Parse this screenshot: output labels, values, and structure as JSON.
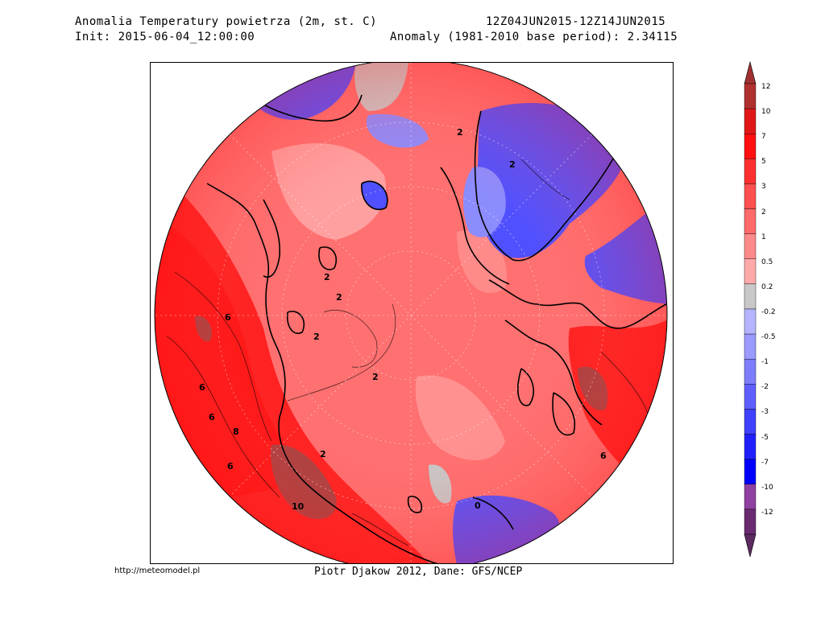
{
  "header": {
    "title_line1": "Anomalia Temperatury powietrza (2m, st. C)",
    "title_line2": "Init: 2015-06-04_12:00:00",
    "period": "12Z04JUN2015-12Z14JUN2015",
    "anomaly_text": "Anomaly (1981-2010 base period): 2.34115"
  },
  "footer": {
    "url": "http://meteomodel.pl",
    "credit": "Piotr Djakow 2012, Dane: GFS/NCEP"
  },
  "legend": {
    "levels": [
      {
        "label": "12",
        "color": "#b03030"
      },
      {
        "label": "10",
        "color": "#e01818"
      },
      {
        "label": "7",
        "color": "#ff1010"
      },
      {
        "label": "5",
        "color": "#ff3030"
      },
      {
        "label": "3",
        "color": "#ff5050"
      },
      {
        "label": "2",
        "color": "#ff6a6a"
      },
      {
        "label": "1",
        "color": "#ff8a8a"
      },
      {
        "label": "0.5",
        "color": "#ffaaaa"
      },
      {
        "label": "0.2",
        "color": "#c8c8c8"
      },
      {
        "label": "-0.2",
        "color": "#b4b4ff"
      },
      {
        "label": "-0.5",
        "color": "#9a9aff"
      },
      {
        "label": "-1",
        "color": "#7d7dff"
      },
      {
        "label": "-2",
        "color": "#5f5fff"
      },
      {
        "label": "-3",
        "color": "#4040ff"
      },
      {
        "label": "-5",
        "color": "#2020ff"
      },
      {
        "label": "-7",
        "color": "#0000ff"
      },
      {
        "label": "-10",
        "color": "#9040a0"
      },
      {
        "label": "-12",
        "color": "#6a2a70"
      }
    ],
    "top_cap_color": "#a03030",
    "bottom_cap_color": "#5a2a60"
  },
  "map": {
    "contour_labels": [
      "2",
      "2",
      "2",
      "2",
      "2",
      "2",
      "6",
      "6",
      "6",
      "6",
      "6",
      "8",
      "10",
      "0",
      "2"
    ],
    "colors": {
      "ocean_base": "#ff7070",
      "warm_land": "#ff2020",
      "very_warm": "#a84040",
      "pale": "#ffa0a0",
      "grey": "#c8c8c8",
      "cold_light": "#8c8cff",
      "cold": "#5050ff"
    }
  }
}
